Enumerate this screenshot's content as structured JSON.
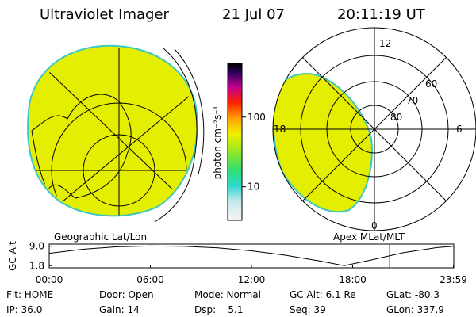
{
  "header": {
    "title": "Ultraviolet Imager",
    "date": "21 Jul 07",
    "time": "20:11:19 UT"
  },
  "colorbar": {
    "label": "photon cm⁻²s⁻¹",
    "scale": "log",
    "lim": [
      3.3,
      590
    ],
    "ticks": [
      100,
      10
    ]
  },
  "polar": {
    "mlt_labels": [
      "12",
      "6",
      "0",
      "18"
    ],
    "mlat_labels": [
      "80",
      "70",
      "60"
    ]
  },
  "panel_labels": {
    "left": "Geographic Lat/Lon",
    "right": "Apex MLat/MLT"
  },
  "chart_data": {
    "type": "line",
    "y_label": "GC Alt",
    "xlim": [
      0,
      24
    ],
    "xticks": [
      {
        "value": 0,
        "label": "00:00"
      },
      {
        "value": 6,
        "label": "06:00"
      },
      {
        "value": 12,
        "label": "12:00"
      },
      {
        "value": 18,
        "label": "18:00"
      },
      {
        "value": 23.98,
        "label": "23:59"
      }
    ],
    "ylim": [
      1.0,
      9.8
    ],
    "yticks": [
      {
        "value": 9.0,
        "label": "9.0"
      },
      {
        "value": 1.8,
        "label": "1.8"
      }
    ],
    "series": [
      {
        "color": "#000000",
        "x": [
          0,
          2,
          4,
          6,
          8,
          10,
          12,
          14,
          16,
          17.5,
          19,
          21,
          23,
          24
        ],
        "values": [
          6.4,
          7.9,
          8.8,
          9.1,
          9.0,
          8.4,
          7.3,
          5.7,
          3.6,
          1.8,
          3.8,
          6.6,
          8.5,
          9.0
        ]
      }
    ],
    "marker": {
      "x": 20.19,
      "color": "#dd0000"
    }
  },
  "status": {
    "rows": [
      [
        "Flt: HOME",
        "Door: Open",
        "Mode: Normal",
        "GC Alt: 6.1 Re",
        "GLat: -80.3"
      ],
      [
        "IP: 36.0",
        "Gain: 14",
        "Dsp:    5.1",
        "Seq: 39",
        "GLon: 337.9"
      ]
    ]
  }
}
